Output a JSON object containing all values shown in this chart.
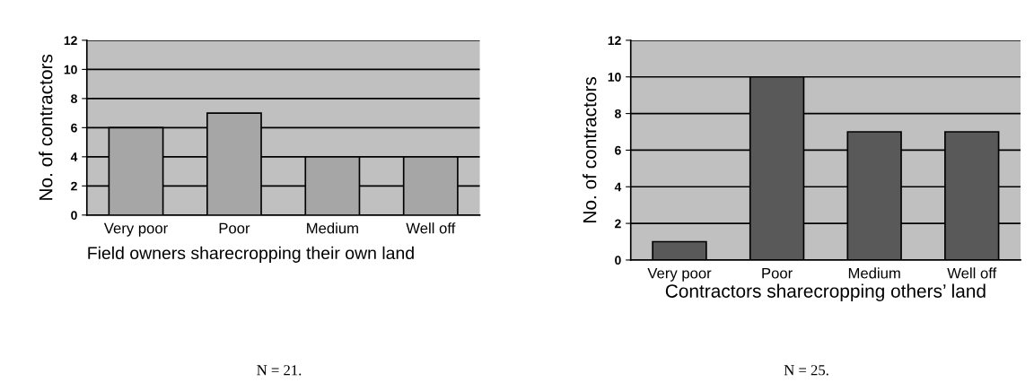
{
  "chart_data": [
    {
      "type": "bar",
      "categories": [
        "Very poor",
        "Poor",
        "Medium",
        "Well off"
      ],
      "values": [
        6,
        7,
        4,
        4
      ],
      "color": "#a6a6a6",
      "ylim": [
        0,
        12
      ],
      "yticks": [
        0,
        2,
        4,
        6,
        8,
        10,
        12
      ],
      "grid": "y",
      "xlabel": "Field owners sharecropping their own land",
      "ylabel": "No. of contractors",
      "annotations": [
        "N = 21."
      ]
    },
    {
      "type": "bar",
      "categories": [
        "Very poor",
        "Poor",
        "Medium",
        "Well off"
      ],
      "values": [
        1,
        10,
        7,
        7
      ],
      "color": "#595959",
      "ylim": [
        0,
        12
      ],
      "yticks": [
        0,
        2,
        4,
        6,
        8,
        10,
        12
      ],
      "grid": "y",
      "xlabel": "Contractors sharecropping others’ land",
      "ylabel": "No. of contractors",
      "annotations": [
        "N = 25."
      ]
    }
  ]
}
